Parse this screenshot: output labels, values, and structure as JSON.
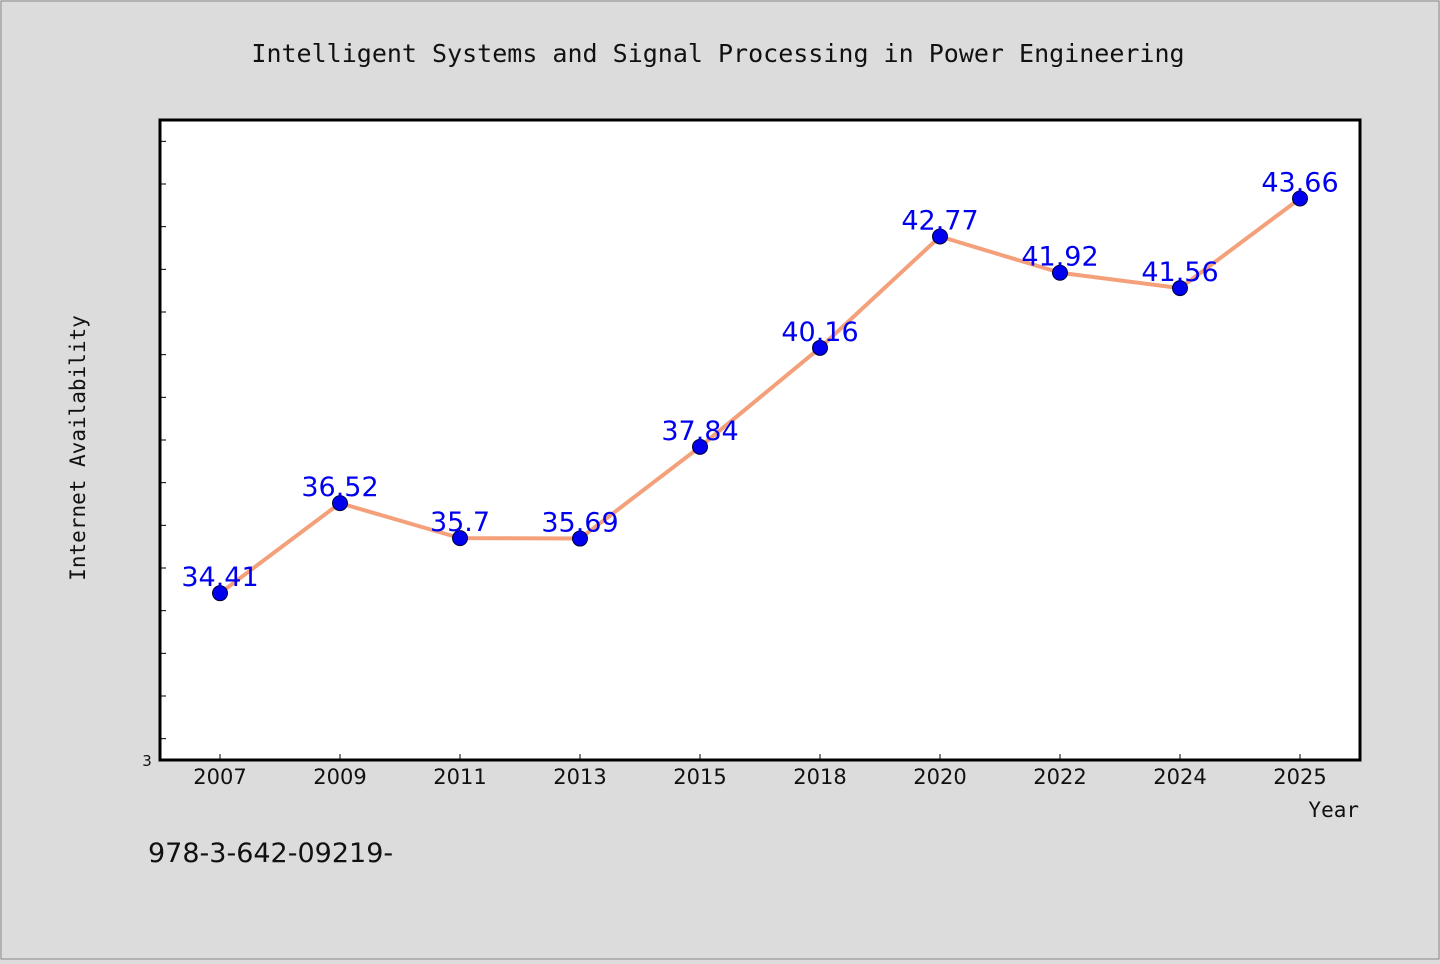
{
  "chart_data": {
    "type": "line",
    "title": "Intelligent Systems and Signal Processing in Power Engineering",
    "xlabel": "Year",
    "ylabel": "Internet Availability",
    "categories": [
      "2007",
      "2009",
      "2011",
      "2013",
      "2015",
      "2018",
      "2020",
      "2022",
      "2024",
      "2025"
    ],
    "series": [
      {
        "values": [
          34.41,
          36.52,
          35.7,
          35.69,
          37.84,
          40.16,
          42.77,
          41.92,
          41.56,
          43.66
        ],
        "data_labels": [
          "34.41",
          "36.52",
          "35.7",
          "35.69",
          "37.84",
          "40.16",
          "42.77",
          "41.92",
          "41.56",
          "43.66"
        ]
      }
    ],
    "y_tick_label": "3",
    "ylim": [
      30.5,
      45.5
    ],
    "y_minor_tick_step": 1,
    "grid": false,
    "line_color": "#f4a07a",
    "marker_color": "#0000ee",
    "label_color": "#0000ee"
  },
  "footer_text": "978-3-642-09219-"
}
